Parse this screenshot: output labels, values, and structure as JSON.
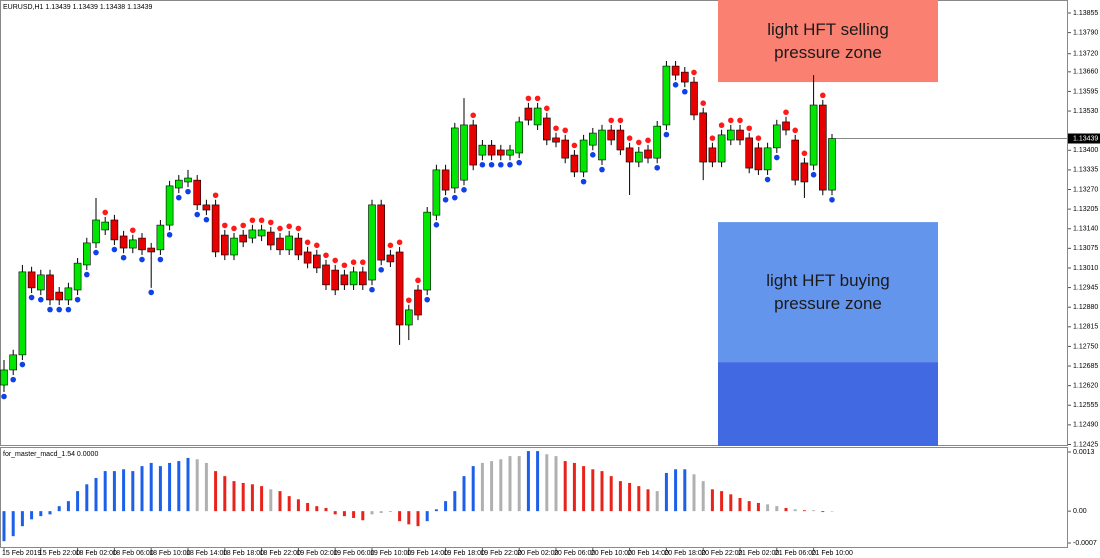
{
  "chart_data": [
    {
      "type": "candlestick",
      "title": "EURUSD,H1  1.13439 1.13439 1.13438 1.13439",
      "categories": [
        "15 Feb 2019",
        null,
        null,
        null,
        "15 Feb 22:00",
        null,
        null,
        null,
        "18 Feb 02:00",
        null,
        null,
        null,
        "18 Feb 06:00",
        null,
        null,
        null,
        "18 Feb 10:00",
        null,
        null,
        null,
        "18 Feb 14:00",
        null,
        null,
        null,
        "18 Feb 18:00",
        null,
        null,
        null,
        "18 Feb 22:00",
        null,
        null,
        null,
        "19 Feb 02:00",
        null,
        null,
        null,
        "19 Feb 06:00",
        null,
        null,
        null,
        "19 Feb 10:00",
        null,
        null,
        null,
        "19 Feb 14:00",
        null,
        null,
        null,
        "19 Feb 18:00",
        null,
        null,
        null,
        "19 Feb 22:00",
        null,
        null,
        null,
        "20 Feb 02:00",
        null,
        null,
        null,
        "20 Feb 06:00",
        null,
        null,
        null,
        "20 Feb 10:00",
        null,
        null,
        null,
        "20 Feb 14:00",
        null,
        null,
        null,
        "20 Feb 18:00",
        null,
        null,
        null,
        "20 Feb 22:00",
        null,
        null,
        null,
        "21 Feb 02:00",
        null,
        null,
        null,
        "21 Feb 06:00",
        null,
        null,
        null,
        "21 Feb 10:00",
        null,
        null
      ],
      "open": [
        1.12622,
        1.12672,
        1.12722,
        1.12997,
        1.12937,
        1.12987,
        1.1293,
        1.12904,
        1.12937,
        1.1302,
        1.13093,
        1.13136,
        1.13169,
        1.13116,
        1.13076,
        1.13109,
        1.13076,
        1.1307,
        1.13152,
        1.13275,
        1.13295,
        1.13301,
        1.13219,
        1.13219,
        1.13119,
        1.13053,
        1.13119,
        1.13109,
        1.13116,
        1.13129,
        1.13109,
        1.1307,
        1.13109,
        1.13063,
        1.13053,
        1.1302,
        1.13003,
        1.12987,
        1.12954,
        1.12997,
        1.1297,
        1.13219,
        1.13053,
        1.13063,
        1.12821,
        1.12937,
        1.12937,
        1.13185,
        1.13335,
        1.13275,
        1.13301,
        1.13484,
        1.13384,
        1.13417,
        1.13401,
        1.13384,
        1.13391,
        1.1354,
        1.13484,
        1.13507,
        1.13441,
        1.13434,
        1.13384,
        1.13328,
        1.13417,
        1.13368,
        1.13467,
        1.13467,
        1.13408,
        1.13361,
        1.13401,
        1.13374,
        1.13484,
        1.13679,
        1.13659,
        1.13626,
        1.13524,
        1.13408,
        1.13361,
        1.13434,
        1.13467,
        1.13441,
        1.13408,
        1.13335,
        1.13408,
        1.13494,
        1.13434,
        1.13358,
        1.13351,
        1.1355,
        1.13268
      ],
      "high": [
        1.12705,
        1.12739,
        1.1302,
        1.13014,
        1.13004,
        1.13004,
        1.12947,
        1.12961,
        1.13043,
        1.1311,
        1.13242,
        1.13179,
        1.13186,
        1.13133,
        1.1312,
        1.13126,
        1.13093,
        1.13169,
        1.13299,
        1.13318,
        1.13335,
        1.13318,
        1.13236,
        1.13236,
        1.13136,
        1.13126,
        1.13136,
        1.13153,
        1.13153,
        1.13146,
        1.13126,
        1.13133,
        1.13126,
        1.1308,
        1.1307,
        1.13037,
        1.1302,
        1.13004,
        1.13014,
        1.13014,
        1.13236,
        1.13236,
        1.1307,
        1.1308,
        1.12888,
        1.12954,
        1.13212,
        1.13352,
        1.13352,
        1.13491,
        1.13573,
        1.13501,
        1.13434,
        1.13434,
        1.13418,
        1.13418,
        1.13511,
        1.13557,
        1.13557,
        1.13524,
        1.13458,
        1.13451,
        1.13401,
        1.13451,
        1.13474,
        1.13484,
        1.13484,
        1.13484,
        1.13425,
        1.13411,
        1.13418,
        1.13497,
        1.13696,
        1.13696,
        1.13676,
        1.13643,
        1.13541,
        1.13425,
        1.13468,
        1.13484,
        1.13484,
        1.13458,
        1.13425,
        1.13425,
        1.13501,
        1.13511,
        1.13451,
        1.13375,
        1.13649,
        1.13567,
        1.13454
      ],
      "low": [
        1.12599,
        1.12655,
        1.12705,
        1.12927,
        1.1292,
        1.12887,
        1.12887,
        1.12887,
        1.1292,
        1.13003,
        1.13076,
        1.13119,
        1.13086,
        1.13059,
        1.13059,
        1.13053,
        1.12944,
        1.13053,
        1.13135,
        1.13258,
        1.13278,
        1.13202,
        1.13185,
        1.13046,
        1.13036,
        1.13036,
        1.13079,
        1.13092,
        1.13099,
        1.13069,
        1.13053,
        1.13053,
        1.13036,
        1.13009,
        1.12993,
        1.12937,
        1.1292,
        1.12937,
        1.12937,
        1.12937,
        1.12953,
        1.13019,
        1.13013,
        1.12755,
        1.12771,
        1.12837,
        1.1292,
        1.13168,
        1.13251,
        1.13258,
        1.13284,
        1.13334,
        1.13367,
        1.13367,
        1.13367,
        1.13367,
        1.13374,
        1.13483,
        1.13467,
        1.13417,
        1.1341,
        1.13357,
        1.13311,
        1.13311,
        1.134,
        1.13351,
        1.13417,
        1.13384,
        1.13252,
        1.13344,
        1.13357,
        1.13357,
        1.13467,
        1.13632,
        1.13609,
        1.135,
        1.13301,
        1.13344,
        1.13344,
        1.13417,
        1.13417,
        1.13324,
        1.13318,
        1.13318,
        1.13391,
        1.1345,
        1.13284,
        1.13242,
        1.13334,
        1.13251,
        1.13251
      ],
      "close": [
        1.12672,
        1.12722,
        1.12997,
        1.12944,
        1.12987,
        1.12904,
        1.12904,
        1.12944,
        1.13026,
        1.13093,
        1.13169,
        1.13162,
        1.13103,
        1.13076,
        1.13103,
        1.1307,
        1.13063,
        1.13152,
        1.13282,
        1.13301,
        1.13308,
        1.13219,
        1.13202,
        1.13063,
        1.13053,
        1.13109,
        1.13096,
        1.13136,
        1.13136,
        1.13086,
        1.1307,
        1.13116,
        1.13053,
        1.13026,
        1.1301,
        1.12954,
        1.12937,
        1.12954,
        1.12997,
        1.12954,
        1.13219,
        1.13036,
        1.1303,
        1.12821,
        1.12871,
        1.12854,
        1.13195,
        1.13335,
        1.13268,
        1.13474,
        1.13484,
        1.13351,
        1.13417,
        1.13384,
        1.13384,
        1.13401,
        1.13494,
        1.135,
        1.1354,
        1.13434,
        1.13427,
        1.13374,
        1.13328,
        1.13434,
        1.13457,
        1.13467,
        1.13434,
        1.13401,
        1.13361,
        1.13394,
        1.13374,
        1.1348,
        1.13679,
        1.13649,
        1.13626,
        1.13517,
        1.13361,
        1.13361,
        1.13451,
        1.13467,
        1.13434,
        1.13341,
        1.13335,
        1.13408,
        1.13484,
        1.13467,
        1.13301,
        1.13295,
        1.1355,
        1.13268,
        1.13439
      ],
      "up_color": "#00e600",
      "down_color": "#e60000",
      "dots": [
        1.12584,
        1.1264,
        1.1269,
        1.12912,
        1.12905,
        1.12872,
        1.12872,
        1.12872,
        1.12905,
        1.12988,
        1.13061,
        1.13194,
        1.13071,
        1.13044,
        1.13135,
        1.13038,
        1.12929,
        1.13038,
        1.1312,
        1.13243,
        1.13263,
        1.13187,
        1.1317,
        1.13251,
        1.13151,
        1.13141,
        1.13151,
        1.13168,
        1.13168,
        1.13161,
        1.13141,
        1.13148,
        1.13141,
        1.13095,
        1.13085,
        1.13052,
        1.13035,
        1.13019,
        1.13029,
        1.13029,
        1.12938,
        1.13004,
        1.13085,
        1.13095,
        1.12903,
        1.12969,
        1.12905,
        1.13153,
        1.13236,
        1.13243,
        1.13269,
        1.13516,
        1.13352,
        1.13352,
        1.13352,
        1.13352,
        1.13359,
        1.13572,
        1.13572,
        1.13539,
        1.13473,
        1.13466,
        1.13416,
        1.13296,
        1.13385,
        1.13336,
        1.13499,
        1.13499,
        1.1344,
        1.13426,
        1.13433,
        1.13342,
        1.13452,
        1.13617,
        1.13594,
        1.13658,
        1.13556,
        1.1344,
        1.13483,
        1.13499,
        1.13499,
        1.13473,
        1.1344,
        1.13303,
        1.13376,
        1.13526,
        1.13466,
        1.1339,
        1.13319,
        1.13582,
        1.13236
      ],
      "dot_above_color": "#ff1a1a",
      "dot_below_color": "#1040e8",
      "last_price": 1.13439,
      "ylim": [
        1.1242,
        1.13898
      ],
      "yticks": [
        1.13855,
        {
          "value": 1.1379,
          "label": "1.13790"
        },
        {
          "value": 1.1372,
          "label": "1.13720"
        },
        {
          "value": 1.1366,
          "label": "1.13660"
        },
        1.13595,
        {
          "value": 1.1353,
          "label": "1.13530"
        },
        {
          "value": 1.134,
          "label": "1.13400"
        },
        1.13335,
        {
          "value": 1.1327,
          "label": "1.13270"
        },
        1.13205,
        {
          "value": 1.1314,
          "label": "1.13140"
        },
        1.13075,
        {
          "value": 1.1301,
          "label": "1.13010"
        },
        1.12945,
        {
          "value": 1.1288,
          "label": "1.12880"
        },
        1.12815,
        {
          "value": 1.1275,
          "label": "1.12750"
        },
        1.12685,
        {
          "value": 1.1262,
          "label": "1.12620"
        },
        1.12555,
        {
          "value": 1.1249,
          "label": "1.12490"
        },
        1.12425
      ],
      "zones": [
        {
          "label": "light HFT selling pressure zone",
          "from": 1.13626,
          "to": 1.13898,
          "color": "#fa8072"
        },
        {
          "label": "light HFT buying pressure zone",
          "from": 1.12698,
          "to": 1.13162,
          "color": "#6495ed"
        },
        {
          "from": 1.1242,
          "to": 1.12698,
          "color": "#4169e1"
        }
      ]
    },
    {
      "type": "bar",
      "title": "for_master_macd_1.54 0.0000",
      "values": [
        -0.00066,
        -0.00055,
        -0.00033,
        -0.00018,
        -0.00011,
        -7e-05,
        0.00011,
        0.00022,
        0.00044,
        0.00059,
        0.00073,
        0.00088,
        0.00088,
        0.00092,
        0.00088,
        0.00099,
        0.00106,
        0.00099,
        0.00106,
        0.0011,
        0.00117,
        0.00114,
        0.00106,
        0.00088,
        0.00077,
        0.00066,
        0.00062,
        0.00059,
        0.00055,
        0.00048,
        0.00044,
        0.00033,
        0.00026,
        0.00018,
        0.00011,
        7e-05,
        -7e-05,
        -0.00011,
        -0.00015,
        -0.0002,
        -7e-05,
        -4e-05,
        -2e-05,
        -0.00022,
        -0.00029,
        -0.00033,
        -0.00022,
        4e-05,
        0.00022,
        0.00044,
        0.00077,
        0.00099,
        0.00106,
        0.0011,
        0.00114,
        0.00121,
        0.00121,
        0.00132,
        0.00132,
        0.00125,
        0.00121,
        0.0011,
        0.00106,
        0.00099,
        0.00092,
        0.00088,
        0.00077,
        0.00066,
        0.00062,
        0.00055,
        0.00048,
        0.00044,
        0.00084,
        0.00092,
        0.00092,
        0.00081,
        0.00066,
        0.00048,
        0.00044,
        0.00037,
        0.00029,
        0.00022,
        0.00018,
        0.00015,
        0.00011,
        7e-05,
        4e-05,
        2e-05,
        2e-05,
        -2e-05,
        0
      ],
      "colors": [
        "#1c5fe8",
        "#1c5fe8",
        "#1c5fe8",
        "#1c5fe8",
        "#1c5fe8",
        "#1c5fe8",
        "#1c5fe8",
        "#1c5fe8",
        "#1c5fe8",
        "#1c5fe8",
        "#1c5fe8",
        "#1c5fe8",
        "#1c5fe8",
        "#1c5fe8",
        "#1c5fe8",
        "#1c5fe8",
        "#1c5fe8",
        "#1c5fe8",
        "#1c5fe8",
        "#1c5fe8",
        "#1c5fe8",
        "#b0b0b0",
        "#b0b0b0",
        "#e8231c",
        "#e8231c",
        "#e8231c",
        "#e8231c",
        "#e8231c",
        "#e8231c",
        "#b0b0b0",
        "#e8231c",
        "#e8231c",
        "#e8231c",
        "#e8231c",
        "#e8231c",
        "#e8231c",
        "#e8231c",
        "#e8231c",
        "#e8231c",
        "#e8231c",
        "#b0b0b0",
        "#b0b0b0",
        "#b0b0b0",
        "#e8231c",
        "#e8231c",
        "#e8231c",
        "#1c5fe8",
        "#1c5fe8",
        "#1c5fe8",
        "#1c5fe8",
        "#1c5fe8",
        "#1c5fe8",
        "#b0b0b0",
        "#b0b0b0",
        "#b0b0b0",
        "#b0b0b0",
        "#b0b0b0",
        "#1c5fe8",
        "#1c5fe8",
        "#b0b0b0",
        "#b0b0b0",
        "#e8231c",
        "#e8231c",
        "#e8231c",
        "#e8231c",
        "#e8231c",
        "#e8231c",
        "#e8231c",
        "#e8231c",
        "#e8231c",
        "#e8231c",
        "#b0b0b0",
        "#1c5fe8",
        "#1c5fe8",
        "#1c5fe8",
        "#b0b0b0",
        "#b0b0b0",
        "#e8231c",
        "#e8231c",
        "#e8231c",
        "#e8231c",
        "#e8231c",
        "#e8231c",
        "#b0b0b0",
        "#b0b0b0",
        "#e8231c",
        "#b0b0b0",
        "#e8231c",
        "#b0b0b0",
        "#e8231c",
        "#b0b0b0"
      ],
      "ylim": [
        -0.00081,
        0.00141
      ],
      "yticks": [
        0.0013,
        {
          "value": 0,
          "label": "0.00"
        },
        -0.0007
      ]
    }
  ]
}
